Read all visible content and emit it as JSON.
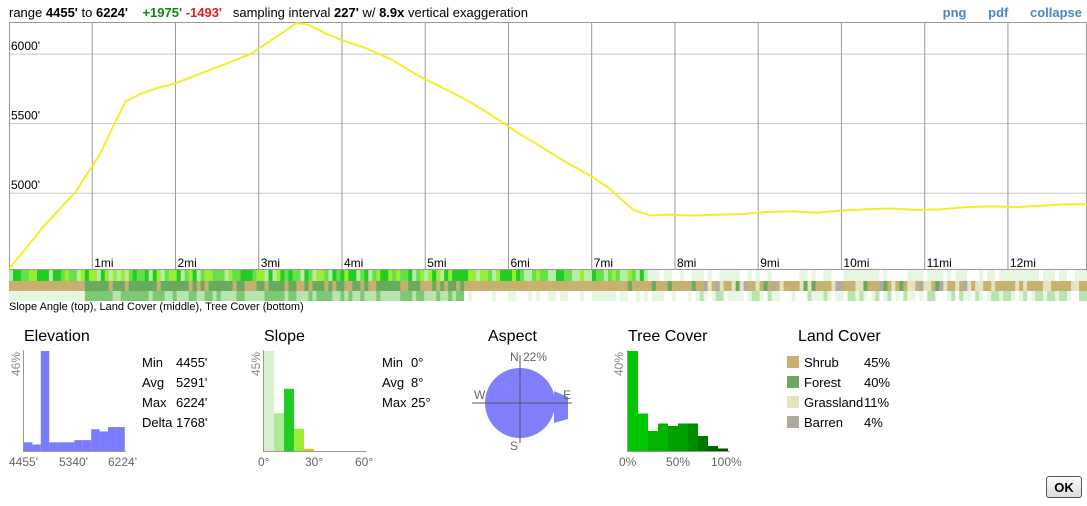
{
  "summary": {
    "range_label": "range",
    "range_min": "4455'",
    "to_label": "to",
    "range_max": "6224'",
    "gain": "+1975'",
    "loss": "-1493'",
    "interval_label": "sampling interval",
    "interval": "227'",
    "with_label": "w/",
    "exaggeration": "8.9x",
    "exaggeration_label": "vertical exaggeration"
  },
  "links": {
    "png": "png",
    "pdf": "pdf",
    "collapse": "collapse"
  },
  "chart_data": [
    {
      "type": "line",
      "name": "elevation-profile",
      "x_ticks": [
        "1mi",
        "2mi",
        "3mi",
        "4mi",
        "5mi",
        "6mi",
        "7mi",
        "8mi",
        "9mi",
        "10mi",
        "11mi",
        "12mi"
      ],
      "y_ticks": [
        "6000'",
        "5500'",
        "5000'"
      ],
      "y_tick_values": [
        6000,
        5500,
        5000
      ],
      "xlim": [
        0,
        12.95
      ],
      "ylim": [
        4455,
        6224
      ],
      "line_color": "#f2ef2a",
      "x": [
        0,
        0.2,
        0.4,
        0.6,
        0.8,
        0.95,
        1.1,
        1.25,
        1.4,
        1.6,
        1.8,
        2.0,
        2.3,
        2.6,
        2.9,
        3.1,
        3.3,
        3.45,
        3.6,
        3.8,
        4.0,
        4.3,
        4.6,
        4.9,
        5.2,
        5.5,
        5.8,
        6.1,
        6.4,
        6.7,
        7.0,
        7.2,
        7.35,
        7.5,
        7.7,
        7.9,
        8.2,
        8.5,
        8.8,
        9.1,
        9.4,
        9.7,
        10.0,
        10.3,
        10.6,
        10.9,
        11.2,
        11.5,
        11.8,
        12.1,
        12.4,
        12.7,
        12.95
      ],
      "y": [
        4455,
        4600,
        4750,
        4880,
        5010,
        5150,
        5290,
        5480,
        5660,
        5720,
        5760,
        5790,
        5860,
        5930,
        6000,
        6080,
        6160,
        6224,
        6210,
        6150,
        6100,
        6040,
        5960,
        5850,
        5760,
        5670,
        5560,
        5440,
        5330,
        5220,
        5120,
        5040,
        4960,
        4880,
        4840,
        4845,
        4840,
        4845,
        4850,
        4865,
        4870,
        4860,
        4875,
        4885,
        4890,
        4880,
        4885,
        4900,
        4905,
        4900,
        4910,
        4920,
        4920
      ]
    },
    {
      "type": "bar",
      "name": "elevation-histogram",
      "title": "Elevation",
      "ylabel": "46%",
      "x_ticks": [
        "4455'",
        "5340'",
        "6224'"
      ],
      "color": "#7b7bff",
      "values": [
        4,
        3,
        46,
        4,
        4,
        4,
        5,
        5,
        10,
        9,
        11,
        11
      ]
    },
    {
      "type": "bar",
      "name": "slope-histogram",
      "title": "Slope",
      "ylabel": "45%",
      "x_ticks": [
        "0°",
        "30°",
        "60°"
      ],
      "bars": [
        {
          "value": 45,
          "color": "#d8f0d0"
        },
        {
          "value": 17,
          "color": "#aee89a"
        },
        {
          "value": 28,
          "color": "#22cc22"
        },
        {
          "value": 10,
          "color": "#99ee33"
        },
        {
          "value": 1,
          "color": "#e0c020"
        }
      ]
    },
    {
      "type": "pie",
      "name": "aspect-rose",
      "title": "Aspect",
      "max_label": "22%",
      "directions": [
        "N",
        "E",
        "S",
        "W"
      ],
      "color": "#8080ff"
    },
    {
      "type": "bar",
      "name": "tree-cover-histogram",
      "title": "Tree Cover",
      "ylabel": "40%",
      "x_ticks": [
        "0%",
        "50%",
        "100%"
      ],
      "values": [
        40,
        15,
        8,
        11,
        10,
        11,
        11,
        6,
        2,
        1
      ],
      "colors": [
        "#00c800",
        "#00c800",
        "#00b400",
        "#00b400",
        "#00a000",
        "#00a000",
        "#008c00",
        "#007800",
        "#006400",
        "#005000"
      ]
    }
  ],
  "bands": {
    "caption": "Slope Angle (top), Land Cover (middle), Tree Cover (bottom)"
  },
  "elevation": {
    "title": "Elevation",
    "stats": [
      {
        "label": "Min",
        "value": "4455'"
      },
      {
        "label": "Avg",
        "value": "5291'"
      },
      {
        "label": "Max",
        "value": "6224'"
      },
      {
        "label": "Delta",
        "value": "1768'"
      }
    ]
  },
  "slope": {
    "title": "Slope",
    "stats": [
      {
        "label": "Min",
        "value": "0°"
      },
      {
        "label": "Avg",
        "value": "8°"
      },
      {
        "label": "Max",
        "value": "25°"
      }
    ]
  },
  "aspect": {
    "title": "Aspect"
  },
  "tree_cover": {
    "title": "Tree Cover"
  },
  "land_cover": {
    "title": "Land Cover",
    "items": [
      {
        "label": "Shrub",
        "value": "45%",
        "color": "#c8b070"
      },
      {
        "label": "Forest",
        "value": "40%",
        "color": "#6aaa60"
      },
      {
        "label": "Grassland",
        "value": "11%",
        "color": "#e4e4c0"
      },
      {
        "label": "Barren",
        "value": "4%",
        "color": "#b0aaa0"
      }
    ]
  },
  "ok_button": "OK"
}
